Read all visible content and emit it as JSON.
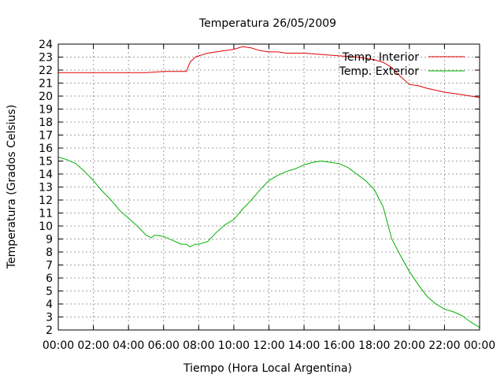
{
  "chart_data": {
    "type": "line",
    "title": "Temperatura 26/05/2009",
    "xlabel": "Tiempo (Hora Local Argentina)",
    "ylabel": "Temperatura (Grados Celsius)",
    "xlim": [
      0,
      24
    ],
    "ylim": [
      2,
      24
    ],
    "x_ticks": [
      "00:00",
      "02:00",
      "04:00",
      "06:00",
      "08:00",
      "10:00",
      "12:00",
      "14:00",
      "16:00",
      "18:00",
      "20:00",
      "22:00",
      "00:00"
    ],
    "y_ticks": [
      2,
      3,
      4,
      5,
      6,
      7,
      8,
      9,
      10,
      11,
      12,
      13,
      14,
      15,
      16,
      17,
      18,
      19,
      20,
      21,
      22,
      23,
      24
    ],
    "grid": true,
    "legend_position": "top-right",
    "series": [
      {
        "name": "Temp. Interior",
        "color": "#e00000",
        "x": [
          0,
          1,
          2,
          3,
          4,
          5,
          6,
          7,
          7.3,
          7.5,
          7.8,
          8,
          8.5,
          9,
          9.5,
          10,
          10.5,
          11,
          11.5,
          12,
          12.5,
          13,
          14,
          15,
          16,
          17,
          17.5,
          18,
          18.5,
          19,
          19.5,
          20,
          20.5,
          21,
          22,
          23,
          24
        ],
        "y": [
          21.8,
          21.8,
          21.8,
          21.8,
          21.8,
          21.8,
          21.9,
          21.9,
          21.9,
          22.6,
          23.0,
          23.1,
          23.3,
          23.4,
          23.5,
          23.6,
          23.8,
          23.7,
          23.5,
          23.4,
          23.4,
          23.3,
          23.3,
          23.2,
          23.1,
          23.0,
          22.9,
          22.8,
          22.6,
          22.2,
          21.5,
          20.9,
          20.8,
          20.6,
          20.3,
          20.1,
          19.9
        ]
      },
      {
        "name": "Temp. Exterior",
        "color": "#00b000",
        "x": [
          0,
          0.5,
          1,
          1.5,
          2,
          2.5,
          3,
          3.5,
          4,
          4.5,
          5,
          5.3,
          5.5,
          6,
          6.5,
          7,
          7.3,
          7.5,
          7.8,
          8,
          8.5,
          9,
          9.5,
          10,
          10.5,
          11,
          11.5,
          12,
          12.5,
          13,
          13.5,
          14,
          14.5,
          15,
          15.5,
          16,
          16.5,
          17,
          17.5,
          18,
          18.5,
          19,
          19.5,
          20,
          20.5,
          21,
          21.5,
          22,
          22.5,
          23,
          23.5,
          24
        ],
        "y": [
          15.3,
          15.1,
          14.8,
          14.2,
          13.5,
          12.7,
          12.0,
          11.2,
          10.6,
          10.0,
          9.3,
          9.1,
          9.3,
          9.2,
          8.9,
          8.6,
          8.6,
          8.4,
          8.6,
          8.6,
          8.8,
          9.5,
          10.1,
          10.5,
          11.3,
          12.0,
          12.8,
          13.5,
          13.9,
          14.2,
          14.4,
          14.7,
          14.9,
          15.0,
          14.9,
          14.8,
          14.5,
          14.0,
          13.5,
          12.8,
          11.5,
          9.0,
          7.7,
          6.5,
          5.5,
          4.6,
          4.0,
          3.6,
          3.4,
          3.1,
          2.6,
          2.2
        ]
      }
    ]
  }
}
